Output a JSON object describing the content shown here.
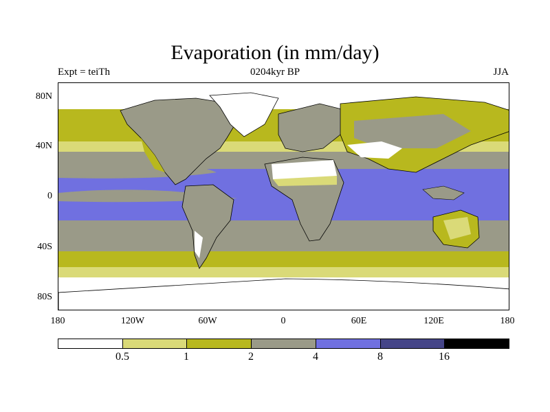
{
  "title": "Evaporation (in mm/day)",
  "subtitle_left": "Expt = teiTh",
  "subtitle_center": "0204kyr BP",
  "subtitle_right": "JJA",
  "lat_ticks": [
    "80N",
    "40N",
    "0",
    "40S",
    "80S"
  ],
  "lon_ticks": [
    "180",
    "120W",
    "60W",
    "0",
    "60E",
    "120E",
    "180"
  ],
  "colorbar": {
    "labels": [
      "0.5",
      "1",
      "2",
      "4",
      "8",
      "16"
    ],
    "colors": [
      "#ffffff",
      "#dada78",
      "#b8b81e",
      "#9a9a88",
      "#7070e0",
      "#454588",
      "#000000"
    ]
  },
  "colors": {
    "ocean_tropical": "#7070e0",
    "ocean_mid": "#9a9a88",
    "band_2": "#b8b81e",
    "band_1": "#dada78",
    "land_dry": "#ffffff",
    "coast": "#000000"
  }
}
